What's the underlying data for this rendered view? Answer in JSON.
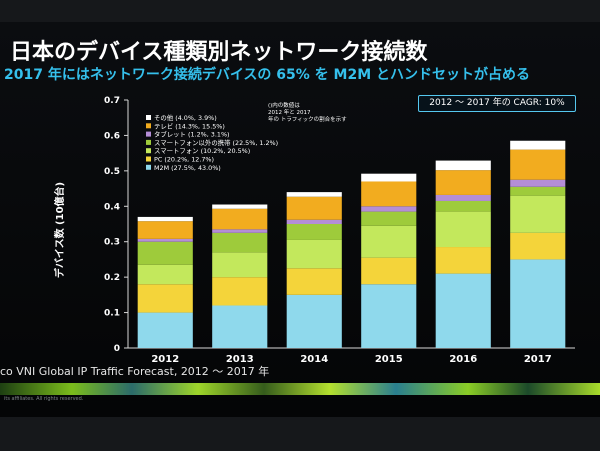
{
  "title": "日本のデバイス種類別ネットワーク接続数",
  "subtitle": "2017 年にはネットワーク接続デバイスの 65% を M2M とハンドセットが占める",
  "cagr_label": "2012 ～ 2017 年の CAGR: 10%",
  "source": "co VNI Global IP Traffic Forecast, 2012 ～ 2017 年",
  "footer_note": "its affiliates. All rights reserved.",
  "chart_data": {
    "type": "bar",
    "stacked": true,
    "categories": [
      "2012",
      "2013",
      "2014",
      "2015",
      "2016",
      "2017"
    ],
    "ylabel": "デバイス数 (10億台)",
    "ylim": [
      0,
      0.7
    ],
    "yticks": [
      "0",
      "0.1",
      "0.2",
      "0.3",
      "0.4",
      "0.5",
      "0.6",
      "0.7"
    ],
    "legend_note": "()内の数値は 2012 年と 2017 年の トラフィックの割合を示す",
    "legend_position": "top-left",
    "grid": false,
    "series": [
      {
        "name": "M2M (27.5%, 43.0%)",
        "color": "#8fd9ec",
        "values": [
          0.1,
          0.12,
          0.15,
          0.18,
          0.21,
          0.25
        ]
      },
      {
        "name": "PC (20.2%, 12.7%)",
        "color": "#f4d43a",
        "values": [
          0.08,
          0.08,
          0.075,
          0.075,
          0.075,
          0.075
        ]
      },
      {
        "name": "スマートフォン (10.2%, 20.5%)",
        "color": "#c3e85c",
        "values": [
          0.055,
          0.07,
          0.08,
          0.09,
          0.1,
          0.105
        ]
      },
      {
        "name": "スマートフォン以外の携帯 (22.5%, 1.2%)",
        "color": "#9ecb3b",
        "values": [
          0.065,
          0.055,
          0.045,
          0.04,
          0.03,
          0.025
        ]
      },
      {
        "name": "タブレット (1.2%, 3.1%)",
        "color": "#b48ed6",
        "values": [
          0.008,
          0.01,
          0.012,
          0.015,
          0.017,
          0.02
        ]
      },
      {
        "name": "テレビ (14.3%, 15.5%)",
        "color": "#f2ac1f",
        "values": [
          0.05,
          0.058,
          0.065,
          0.07,
          0.07,
          0.085
        ]
      },
      {
        "name": "その他 (4.0%, 3.9%)",
        "color": "#ffffff",
        "values": [
          0.012,
          0.012,
          0.013,
          0.022,
          0.027,
          0.025
        ]
      }
    ]
  }
}
